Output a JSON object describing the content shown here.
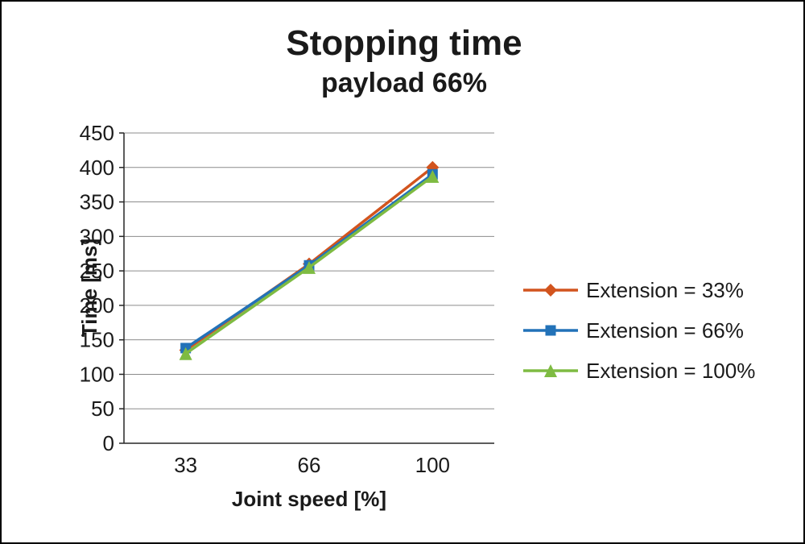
{
  "chart_data": {
    "type": "line",
    "title": "Stopping time",
    "subtitle": "payload 66%",
    "xlabel": "Joint speed [%]",
    "ylabel": "Time [ms]",
    "categories": [
      "33",
      "66",
      "100"
    ],
    "series": [
      {
        "name": "Extension = 33%",
        "color": "#d2541e",
        "marker": "diamond",
        "values": [
          135,
          260,
          400
        ]
      },
      {
        "name": "Extension = 66%",
        "color": "#2272b8",
        "marker": "square",
        "values": [
          138,
          258,
          390
        ]
      },
      {
        "name": "Extension = 100%",
        "color": "#7ebb42",
        "marker": "triangle",
        "values": [
          130,
          255,
          387
        ]
      }
    ],
    "ylim": [
      0,
      450
    ],
    "ytick_step": 50,
    "grid": "horizontal",
    "legend_position": "right",
    "axis_color": "#262626",
    "gridline_color": "#8c8c8c"
  }
}
